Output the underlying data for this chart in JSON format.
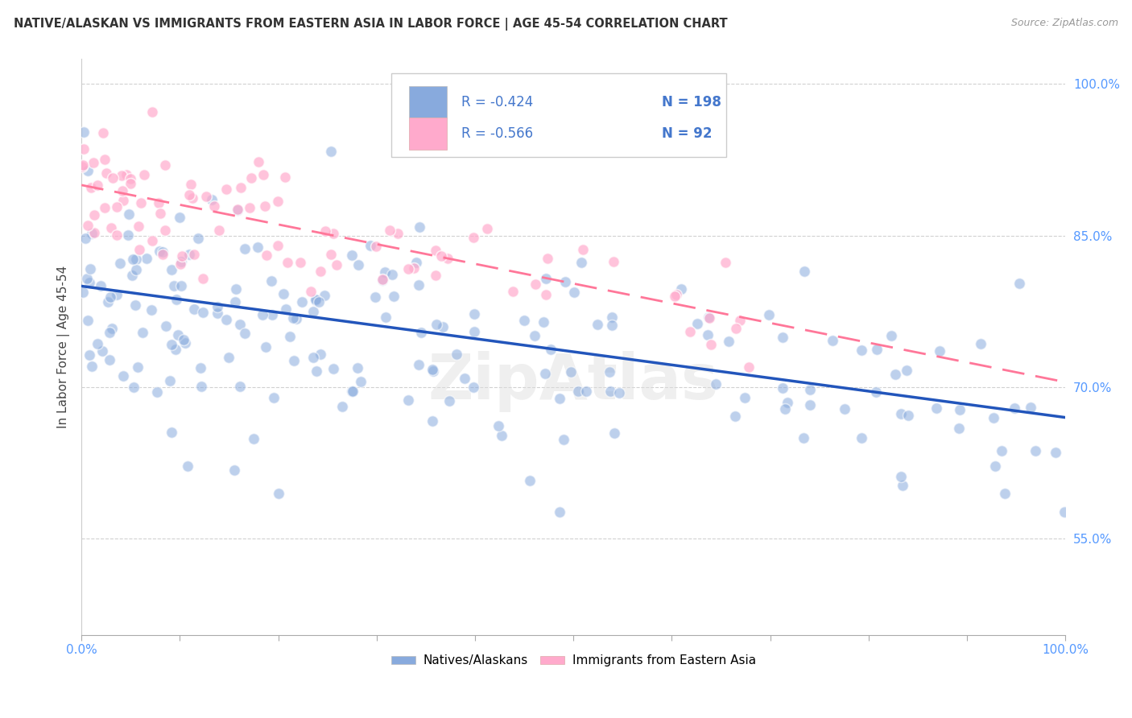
{
  "title": "NATIVE/ALASKAN VS IMMIGRANTS FROM EASTERN ASIA IN LABOR FORCE | AGE 45-54 CORRELATION CHART",
  "source": "Source: ZipAtlas.com",
  "ylabel": "In Labor Force | Age 45-54",
  "blue_R": -0.424,
  "blue_N": 198,
  "pink_R": -0.566,
  "pink_N": 92,
  "blue_line_start_x": 0.0,
  "blue_line_start_y": 0.8,
  "blue_line_end_x": 1.0,
  "blue_line_end_y": 0.67,
  "pink_line_start_x": 0.0,
  "pink_line_start_y": 0.9,
  "pink_line_end_x": 1.0,
  "pink_line_end_y": 0.705,
  "blue_scatter_color": "#88AADD",
  "pink_scatter_color": "#FFAACC",
  "blue_line_color": "#2255BB",
  "pink_line_color": "#FF7799",
  "watermark": "ZipAtlas",
  "watermark_color": "#DDDDDD",
  "xlim": [
    0.0,
    1.0
  ],
  "ylim": [
    0.455,
    1.025
  ],
  "ytick_values": [
    0.55,
    0.7,
    0.85,
    1.0
  ],
  "xtick_values": [
    0.0,
    0.1,
    0.2,
    0.3,
    0.4,
    0.5,
    0.6,
    0.7,
    0.8,
    0.9,
    1.0
  ],
  "tick_color": "#5599FF",
  "legend_label_blue": "Natives/Alaskans",
  "legend_label_pink": "Immigrants from Eastern Asia",
  "title_fontsize": 10.5,
  "source_fontsize": 9,
  "axis_label_fontsize": 11,
  "tick_fontsize": 11,
  "legend_fontsize": 11,
  "scatter_size": 100,
  "scatter_alpha": 0.55,
  "scatter_linewidth": 1.2
}
